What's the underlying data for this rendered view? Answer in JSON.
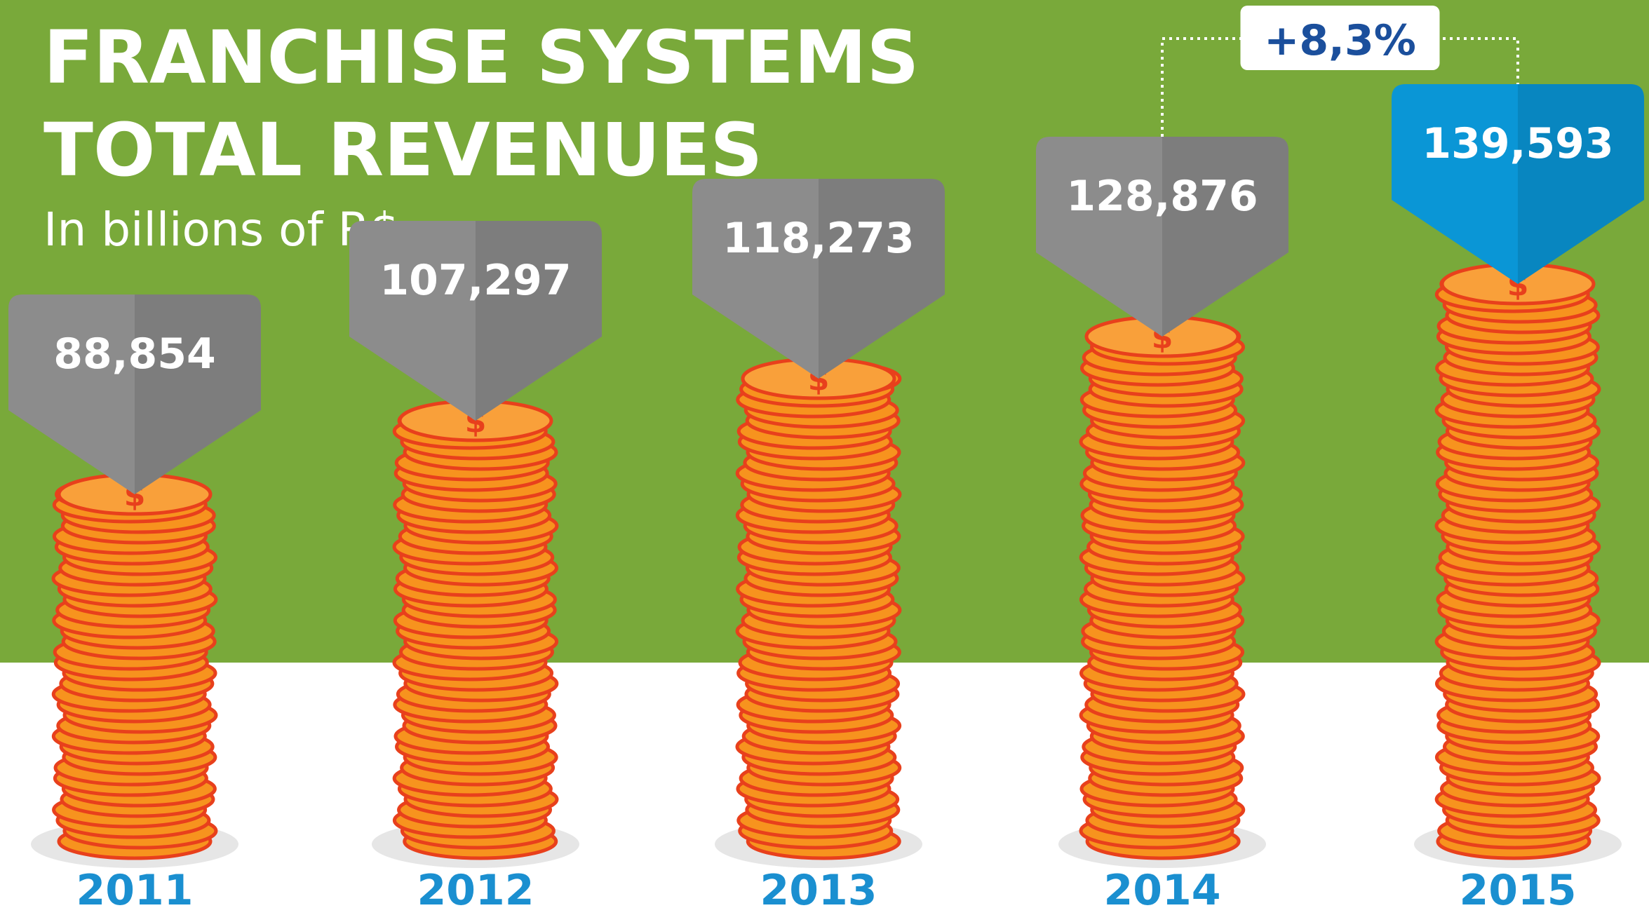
{
  "chart_data": {
    "type": "coin-stack",
    "title": [
      "FRANCHISE SYSTEMS",
      "TOTAL REVENUES"
    ],
    "subtitle": "In billions of R$",
    "categories": [
      "2011",
      "2012",
      "2013",
      "2014",
      "2015"
    ],
    "values": [
      88.854,
      107.297,
      118.273,
      128.876,
      139.593
    ],
    "value_labels": [
      "88,854",
      "107,297",
      "118,273",
      "128,876",
      "139,593"
    ],
    "annotation": "+8,3%",
    "color": "#f7931e",
    "highlight_color": "#0a96d6",
    "callout_color": "#8c8c8c",
    "background_color": "#79a93a"
  }
}
